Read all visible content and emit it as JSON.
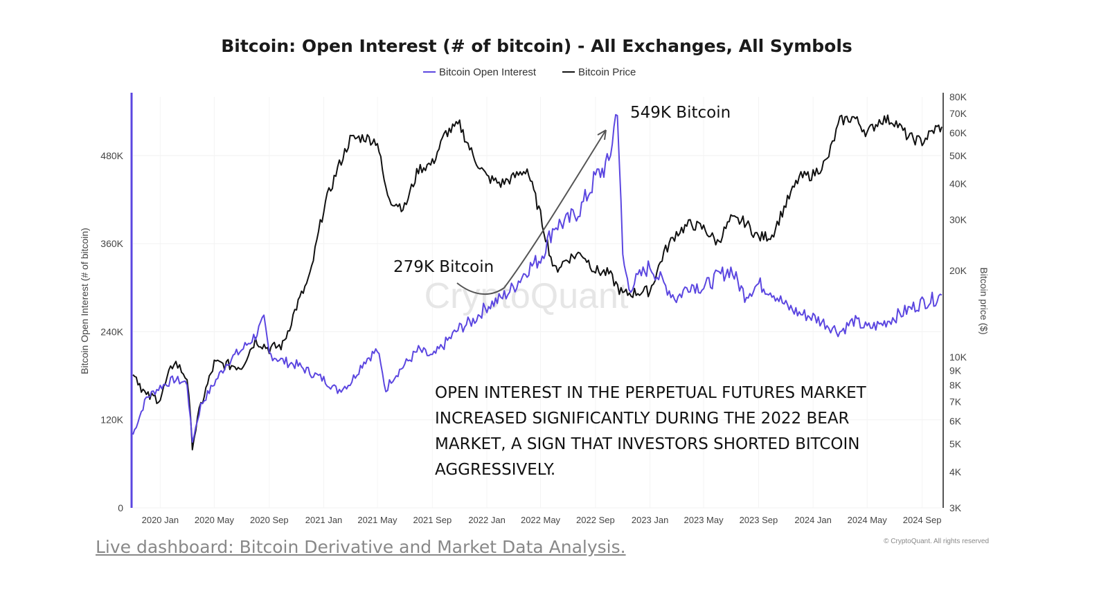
{
  "chart_data": {
    "type": "line",
    "title": "Bitcoin: Open Interest (# of bitcoin) - All Exchanges, All Symbols",
    "ylabel_left": "Bitcoin Open Interest (# of bitcoin)",
    "ylabel_right": "Bitcoin price ($)",
    "left_ticks": [
      "0",
      "120K",
      "240K",
      "360K",
      "480K"
    ],
    "left_ylim": [
      0,
      560000
    ],
    "right_ticks": [
      "3K",
      "4K",
      "5K",
      "6K",
      "7K",
      "8K",
      "9K",
      "10K",
      "20K",
      "30K",
      "40K",
      "50K",
      "60K",
      "70K",
      "80K"
    ],
    "right_tick_values": [
      3000,
      4000,
      5000,
      6000,
      7000,
      8000,
      9000,
      10000,
      20000,
      30000,
      40000,
      50000,
      60000,
      70000,
      80000
    ],
    "right_ylim": [
      3000,
      80000
    ],
    "right_scale": "log",
    "x_ticks": [
      "2020 Jan",
      "2020 May",
      "2020 Sep",
      "2021 Jan",
      "2021 May",
      "2021 Sep",
      "2022 Jan",
      "2022 May",
      "2022 Sep",
      "2023 Jan",
      "2023 May",
      "2023 Sep",
      "2024 Jan",
      "2024 May",
      "2024 Sep"
    ],
    "x_tick_dates": [
      "2020-01-01",
      "2020-05-01",
      "2020-09-01",
      "2021-01-01",
      "2021-05-01",
      "2021-09-01",
      "2022-01-01",
      "2022-05-01",
      "2022-09-01",
      "2023-01-01",
      "2023-05-01",
      "2023-09-01",
      "2024-01-01",
      "2024-05-01",
      "2024-09-01"
    ],
    "xlim": [
      "2019-11-01",
      "2024-10-15"
    ],
    "legend": "top-center",
    "grid": true,
    "series": [
      {
        "name": "Bitcoin Open Interest",
        "axis": "left",
        "color": "#5b46e0",
        "x": [
          "2019-11-01",
          "2019-12-01",
          "2020-01-01",
          "2020-02-01",
          "2020-03-01",
          "2020-03-13",
          "2020-04-01",
          "2020-05-01",
          "2020-06-01",
          "2020-07-01",
          "2020-08-01",
          "2020-08-20",
          "2020-09-01",
          "2020-10-01",
          "2020-11-01",
          "2020-12-01",
          "2021-01-01",
          "2021-02-01",
          "2021-03-01",
          "2021-04-01",
          "2021-05-01",
          "2021-05-20",
          "2021-06-01",
          "2021-07-01",
          "2021-08-01",
          "2021-09-01",
          "2021-10-01",
          "2021-11-01",
          "2021-12-01",
          "2022-01-01",
          "2022-02-01",
          "2022-03-01",
          "2022-04-01",
          "2022-05-01",
          "2022-06-01",
          "2022-07-01",
          "2022-08-01",
          "2022-09-01",
          "2022-10-01",
          "2022-10-20",
          "2022-11-01",
          "2022-11-15",
          "2022-12-01",
          "2023-01-01",
          "2023-02-01",
          "2023-03-01",
          "2023-04-01",
          "2023-05-01",
          "2023-06-01",
          "2023-07-01",
          "2023-08-01",
          "2023-09-01",
          "2023-10-01",
          "2023-11-01",
          "2023-12-01",
          "2024-01-01",
          "2024-02-01",
          "2024-03-01",
          "2024-04-01",
          "2024-05-01",
          "2024-06-01",
          "2024-07-01",
          "2024-08-01",
          "2024-09-01",
          "2024-10-01",
          "2024-10-15"
        ],
        "values": [
          100000,
          150000,
          165000,
          175000,
          170000,
          90000,
          140000,
          170000,
          200000,
          215000,
          235000,
          255000,
          210000,
          200000,
          195000,
          185000,
          175000,
          160000,
          170000,
          200000,
          215000,
          160000,
          175000,
          195000,
          215000,
          205000,
          225000,
          245000,
          255000,
          275000,
          285000,
          300000,
          325000,
          340000,
          385000,
          390000,
          410000,
          450000,
          470000,
          549000,
          340000,
          300000,
          310000,
          330000,
          305000,
          285000,
          305000,
          300000,
          315000,
          325000,
          290000,
          305000,
          295000,
          275000,
          265000,
          260000,
          250000,
          240000,
          255000,
          245000,
          250000,
          260000,
          270000,
          280000,
          285000,
          290000
        ]
      },
      {
        "name": "Bitcoin Price",
        "axis": "right",
        "color": "#111111",
        "x": [
          "2019-11-01",
          "2019-12-01",
          "2020-01-01",
          "2020-02-01",
          "2020-03-01",
          "2020-03-13",
          "2020-04-01",
          "2020-05-01",
          "2020-06-01",
          "2020-07-01",
          "2020-08-01",
          "2020-09-01",
          "2020-10-01",
          "2020-11-01",
          "2020-12-01",
          "2021-01-01",
          "2021-02-01",
          "2021-03-01",
          "2021-04-01",
          "2021-05-01",
          "2021-05-20",
          "2021-06-01",
          "2021-07-01",
          "2021-08-01",
          "2021-09-01",
          "2021-10-01",
          "2021-11-01",
          "2021-12-01",
          "2022-01-01",
          "2022-02-01",
          "2022-03-01",
          "2022-04-01",
          "2022-05-01",
          "2022-06-01",
          "2022-07-01",
          "2022-08-01",
          "2022-09-01",
          "2022-10-01",
          "2022-11-01",
          "2022-12-01",
          "2023-01-01",
          "2023-02-01",
          "2023-03-01",
          "2023-04-01",
          "2023-05-01",
          "2023-06-01",
          "2023-07-01",
          "2023-08-01",
          "2023-09-01",
          "2023-10-01",
          "2023-11-01",
          "2023-12-01",
          "2024-01-01",
          "2024-02-01",
          "2024-03-01",
          "2024-04-01",
          "2024-05-01",
          "2024-06-01",
          "2024-07-01",
          "2024-08-01",
          "2024-09-01",
          "2024-10-01",
          "2024-10-15"
        ],
        "values": [
          9000,
          7300,
          7200,
          9700,
          8500,
          5000,
          6800,
          9500,
          9400,
          9300,
          11500,
          10700,
          11000,
          15000,
          19000,
          33000,
          45000,
          57000,
          58000,
          56000,
          38000,
          35000,
          33000,
          45000,
          47000,
          60000,
          64000,
          50000,
          42000,
          40000,
          42000,
          45000,
          31000,
          20000,
          22000,
          23000,
          20000,
          19500,
          16500,
          16800,
          17000,
          23000,
          27000,
          29000,
          28000,
          25000,
          30000,
          29500,
          26000,
          26500,
          34000,
          42000,
          43000,
          48000,
          66000,
          68000,
          60000,
          67000,
          66000,
          58000,
          56000,
          62000,
          63000
        ]
      }
    ],
    "annotations": [
      "549K Bitcoin",
      "279K Bitcoin"
    ],
    "note_lines": [
      "OPEN INTEREST IN THE PERPETUAL FUTURES MARKET",
      "INCREASED SIGNIFICANTLY DURING THE 2022 BEAR",
      "MARKET, A SIGN THAT INVESTORS SHORTED BITCOIN",
      "AGGRESSIVELY."
    ],
    "watermark": "CryptoQuant",
    "copyright": "© CryptoQuant. All rights reserved"
  },
  "link": {
    "text": "Live dashboard: Bitcoin Derivative and Market Data Analysis."
  }
}
